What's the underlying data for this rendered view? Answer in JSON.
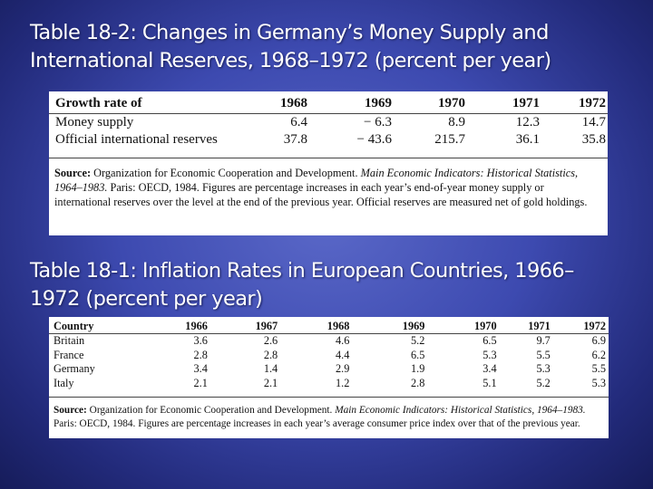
{
  "table2": {
    "title_line1": "Table 18-2: Changes in Germany’s Money Supply and",
    "title_line2": "International Reserves, 1968–1972 (percent per year)",
    "columns": [
      "Growth rate of",
      "1968",
      "1969",
      "1970",
      "1971",
      "1972"
    ],
    "rows": [
      [
        "Money supply",
        "6.4",
        "− 6.3",
        "8.9",
        "12.3",
        "14.7"
      ],
      [
        "Official international reserves",
        "37.8",
        "− 43.6",
        "215.7",
        "36.1",
        "35.8"
      ]
    ],
    "source_label": "Source:",
    "source_org": "Organization for Economic Cooperation and Development.",
    "source_pub": "Main Economic Indicators: Historical Statistics, 1964–1983.",
    "source_note": "Paris: OECD, 1984. Figures are percentage increases in each year’s end-of-year money supply or international reserves over the level at the end of the previous year. Official reserves are measured net of gold holdings."
  },
  "table1": {
    "title_line1": "Table 18-1: Inflation Rates in European Countries, 1966–",
    "title_line2": "1972 (percent per year)",
    "columns": [
      "Country",
      "1966",
      "1967",
      "1968",
      "1969",
      "1970",
      "1971",
      "1972"
    ],
    "rows": [
      [
        "Britain",
        "3.6",
        "2.6",
        "4.6",
        "5.2",
        "6.5",
        "9.7",
        "6.9"
      ],
      [
        "France",
        "2.8",
        "2.8",
        "4.4",
        "6.5",
        "5.3",
        "5.5",
        "6.2"
      ],
      [
        "Germany",
        "3.4",
        "1.4",
        "2.9",
        "1.9",
        "3.4",
        "5.3",
        "5.5"
      ],
      [
        "Italy",
        "2.1",
        "2.1",
        "1.2",
        "2.8",
        "5.1",
        "5.2",
        "5.3"
      ]
    ],
    "source_label": "Source:",
    "source_org": "Organization for Economic Cooperation and Development.",
    "source_pub": "Main Economic Indicators: Historical Statistics, 1964–1983.",
    "source_note": "Paris: OECD, 1984. Figures are percentage increases in each year’s average consumer price index over that of the previous year."
  }
}
